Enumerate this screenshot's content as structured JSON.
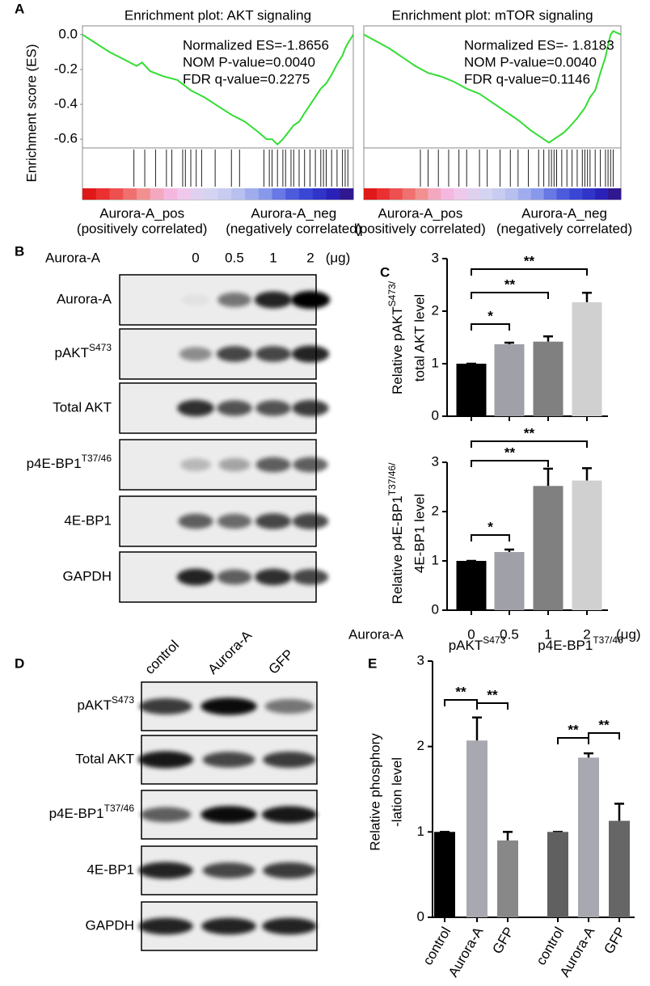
{
  "panel_labels": [
    "A",
    "B",
    "C",
    "D",
    "E"
  ],
  "chart_data": [
    {
      "type": "gsea",
      "title": "Enrichment plot: AKT signaling",
      "ylabel": "Enrichment score (ES)",
      "color": "#33dd33",
      "xlim": [
        0,
        100
      ],
      "ylim": [
        -0.65,
        0.05
      ],
      "yticks": [
        {
          "value": 0,
          "label": "0.0"
        },
        -0.2,
        -0.4,
        -0.6
      ],
      "x": [
        0,
        5,
        10,
        15,
        20,
        22,
        25,
        30,
        35,
        40,
        45,
        50,
        55,
        60,
        65,
        68,
        70,
        72,
        74,
        76,
        78,
        80,
        82,
        85,
        88,
        90,
        92,
        94,
        96,
        97,
        98,
        100
      ],
      "values": [
        0,
        -0.05,
        -0.1,
        -0.14,
        -0.18,
        -0.16,
        -0.21,
        -0.24,
        -0.26,
        -0.32,
        -0.36,
        -0.41,
        -0.46,
        -0.5,
        -0.56,
        -0.6,
        -0.6,
        -0.63,
        -0.6,
        -0.56,
        -0.52,
        -0.5,
        -0.45,
        -0.38,
        -0.31,
        -0.28,
        -0.23,
        -0.17,
        -0.12,
        -0.08,
        -0.05,
        0
      ],
      "hits": [
        19,
        23,
        27,
        31,
        33,
        37,
        38,
        40,
        42,
        44,
        49,
        55,
        58,
        67,
        69,
        70,
        72,
        74,
        75,
        77,
        78,
        80,
        82,
        84,
        86,
        88,
        89,
        90,
        92,
        94,
        96,
        97,
        98
      ],
      "annotations": [
        "Normalized ES=-1.8656",
        "NOM P-value=0.0040",
        "FDR q-value=0.2275"
      ],
      "pos_label": "Aurora-A_pos",
      "pos_note": "(positively correlated)",
      "neg_label": "Aurora-A_neg",
      "neg_note": "(negatively correlated)"
    },
    {
      "type": "gsea",
      "title": "Enrichment plot: mTOR signaling",
      "color": "#33dd33",
      "xlim": [
        0,
        100
      ],
      "ylim": [
        -0.65,
        0.05
      ],
      "x": [
        0,
        5,
        10,
        15,
        20,
        25,
        30,
        35,
        40,
        45,
        50,
        55,
        60,
        65,
        70,
        72,
        74,
        76,
        78,
        80,
        83,
        86,
        88,
        90,
        92,
        94,
        95,
        96,
        97,
        100
      ],
      "values": [
        0,
        -0.04,
        -0.08,
        -0.13,
        -0.18,
        -0.22,
        -0.24,
        -0.27,
        -0.31,
        -0.34,
        -0.39,
        -0.44,
        -0.49,
        -0.55,
        -0.6,
        -0.62,
        -0.6,
        -0.58,
        -0.56,
        -0.53,
        -0.48,
        -0.42,
        -0.36,
        -0.32,
        -0.22,
        -0.13,
        -0.06,
        0,
        0.02,
        0
      ],
      "hits": [
        22,
        25,
        29,
        33,
        37,
        40,
        45,
        48,
        53,
        57,
        60,
        64,
        68,
        70,
        72,
        73,
        74,
        75,
        77,
        79,
        81,
        83,
        85,
        86,
        87,
        88,
        90,
        92,
        94,
        95,
        96,
        97
      ],
      "annotations": [
        "Normalized ES=- 1.8183",
        "NOM P-value=0.0040",
        "FDR q-value=0.1146"
      ],
      "pos_label": "Aurora-A_pos",
      "pos_note": "(positively correlated)",
      "neg_label": "Aurora-A_neg",
      "neg_note": "(negatively correlated)"
    },
    {
      "type": "bar",
      "ylabel": [
        {
          "text": "Relative pAKT",
          "sup": "S473/"
        },
        "total AKT level"
      ],
      "ylim": [
        0,
        3
      ],
      "yticks": [
        0,
        1,
        2,
        3
      ],
      "values": [
        1.0,
        1.37,
        1.42,
        2.17
      ],
      "errors": [
        0,
        0.03,
        0.1,
        0.18
      ],
      "colors": [
        "#000000",
        "#a0a0a8",
        "#808080",
        "#d0d0d0"
      ],
      "significance": [
        "*",
        "**",
        "**"
      ]
    },
    {
      "type": "bar",
      "ylabel": [
        {
          "text": "Relative p4E-BP1",
          "sup": "T37/46/"
        },
        "4E-BP1 level"
      ],
      "ylim": [
        0,
        3
      ],
      "yticks": [
        0,
        1,
        2,
        3
      ],
      "categories": [
        "0",
        "0.5",
        "1",
        "2"
      ],
      "xlabel": "Aurora-A",
      "x_unit": "(μg)",
      "values": [
        1.0,
        1.18,
        2.52,
        2.63
      ],
      "errors": [
        0,
        0.05,
        0.35,
        0.25
      ],
      "colors": [
        "#000000",
        "#a0a0a8",
        "#808080",
        "#d0d0d0"
      ],
      "significance": [
        "*",
        "**",
        "**"
      ]
    },
    {
      "type": "bar",
      "ylabel": [
        "Relative phosphory",
        "-lation level"
      ],
      "ylim": [
        0,
        3
      ],
      "yticks": [
        0,
        1,
        2,
        3
      ],
      "groups": [
        {
          "title": {
            "text": "pAKT",
            "sup": "S473"
          },
          "categories": [
            "control",
            "Aurora-A",
            "GFP"
          ],
          "values": [
            1.0,
            2.07,
            0.9
          ],
          "errors": [
            0,
            0.27,
            0.1
          ],
          "colors": [
            "#000000",
            "#a8a8b0",
            "#888888"
          ],
          "significance": [
            "**",
            "**"
          ]
        },
        {
          "title": {
            "text": "p4E-BP1",
            "sup": "T37/46"
          },
          "categories": [
            "control",
            "Aurora-A",
            "GFP"
          ],
          "values": [
            1.0,
            1.87,
            1.13
          ],
          "errors": [
            0,
            0.05,
            0.2
          ],
          "colors": [
            "#606060",
            "#a8a8b0",
            "#666666"
          ],
          "significance": [
            "**",
            "**"
          ]
        }
      ]
    }
  ],
  "blots": [
    {
      "header_label": "Aurora-A",
      "lanes": [
        "0",
        "0.5",
        "1",
        "2"
      ],
      "unit": "(μg)",
      "rows": [
        "Aurora-A",
        {
          "text": "pAKT",
          "sup": "S473"
        },
        "Total AKT",
        {
          "text": "p4E-BP1",
          "sup": "T37/46"
        },
        "4E-BP1",
        "GAPDH"
      ]
    },
    {
      "lanes": [
        "control",
        "Aurora-A",
        "GFP"
      ],
      "rows": [
        {
          "text": "pAKT",
          "sup": "S473"
        },
        "Total AKT",
        {
          "text": "p4E-BP1",
          "sup": "T37/46"
        },
        "4E-BP1",
        "GAPDH"
      ]
    }
  ]
}
